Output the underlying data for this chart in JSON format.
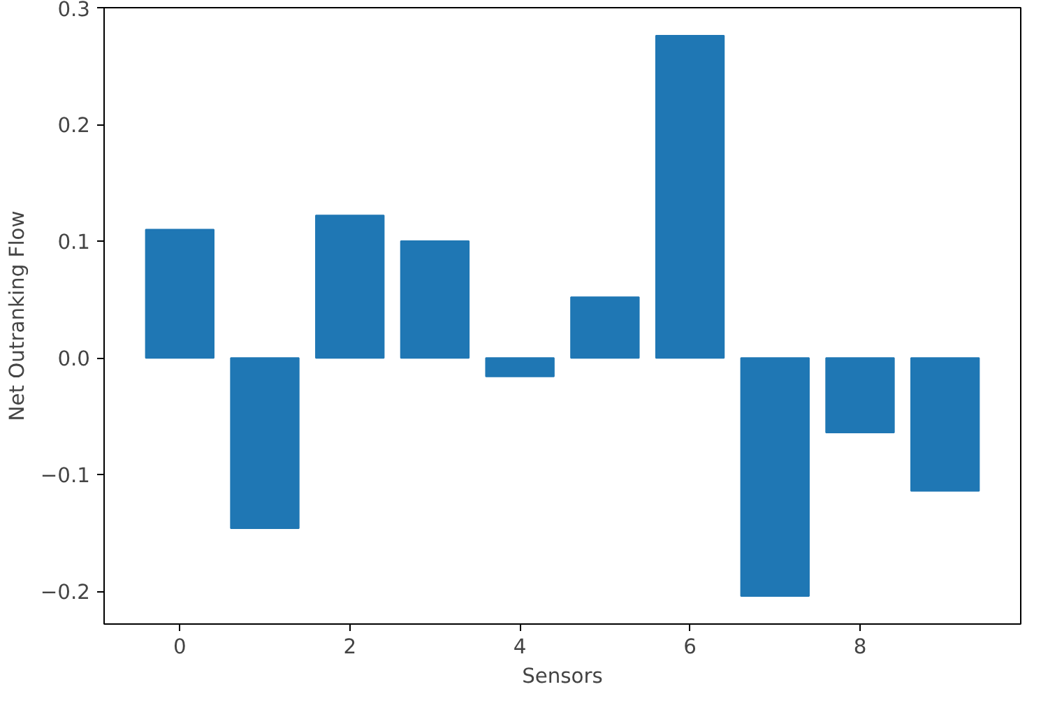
{
  "chart_data": {
    "type": "bar",
    "xlabel": "Sensors",
    "ylabel": "Net Outranking Flow",
    "x": [
      0,
      1,
      2,
      3,
      4,
      5,
      6,
      7,
      8,
      9
    ],
    "values": [
      0.11,
      -0.146,
      0.122,
      0.1,
      -0.016,
      0.052,
      0.276,
      -0.204,
      -0.064,
      -0.114
    ],
    "color": "#1f77b4",
    "xlim": [
      -0.89,
      9.89
    ],
    "xticks": [
      0,
      2,
      4,
      6,
      8
    ],
    "ylim": [
      -0.228,
      0.3
    ],
    "yticks": [
      {
        "value": -0.2,
        "label": "−0.2"
      },
      {
        "value": -0.1,
        "label": "−0.1"
      },
      {
        "value": 0.0,
        "label": "0.0"
      },
      {
        "value": 0.1,
        "label": "0.1"
      },
      {
        "value": 0.2,
        "label": "0.2"
      },
      {
        "value": 0.3,
        "label": "0.3"
      }
    ],
    "grid": false
  }
}
